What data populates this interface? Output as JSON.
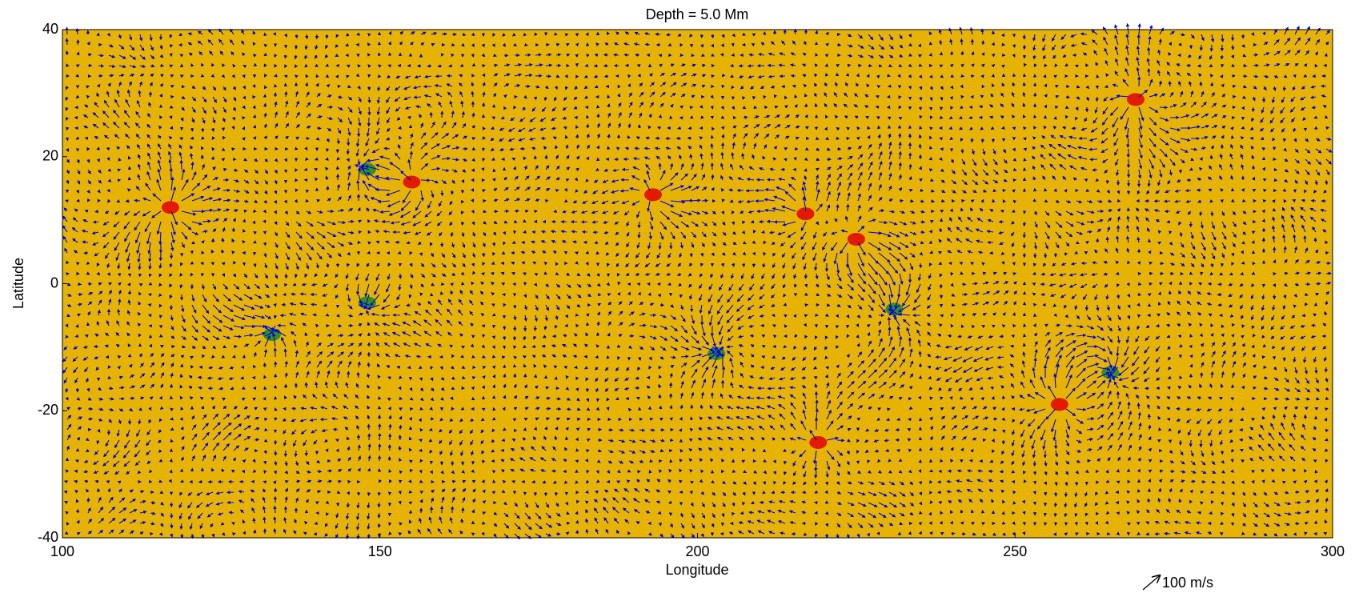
{
  "chart_data": {
    "type": "quiver",
    "title": "Depth = 5.0 Mm",
    "xlabel": "Longitude",
    "ylabel": "Latitude",
    "xlim": [
      100,
      300
    ],
    "ylim": [
      -40,
      40
    ],
    "xticks": [
      100,
      150,
      200,
      250,
      300
    ],
    "yticks": [
      -40,
      -20,
      0,
      20,
      40
    ],
    "background_color": "#e6b400",
    "arrow_color": "#0000ee",
    "key_label": "100 m/s",
    "spots": {
      "x": [
        155,
        117,
        217,
        225,
        269,
        193,
        257,
        219,
        133,
        203,
        231,
        265,
        148,
        148
      ],
      "y": [
        16,
        12,
        11,
        7,
        29,
        14,
        -19,
        -25,
        -8,
        -11,
        -4,
        -14,
        18,
        -3
      ],
      "colors": [
        "#e00000",
        "#e00000",
        "#e00000",
        "#e00000",
        "#e00000",
        "#e00000",
        "#e00000",
        "#e00000",
        "#1a8a1a",
        "#1a8a1a",
        "#1a8a1a",
        "#1a8a1a",
        "#1a8a1a",
        "#1a8a1a"
      ]
    }
  }
}
